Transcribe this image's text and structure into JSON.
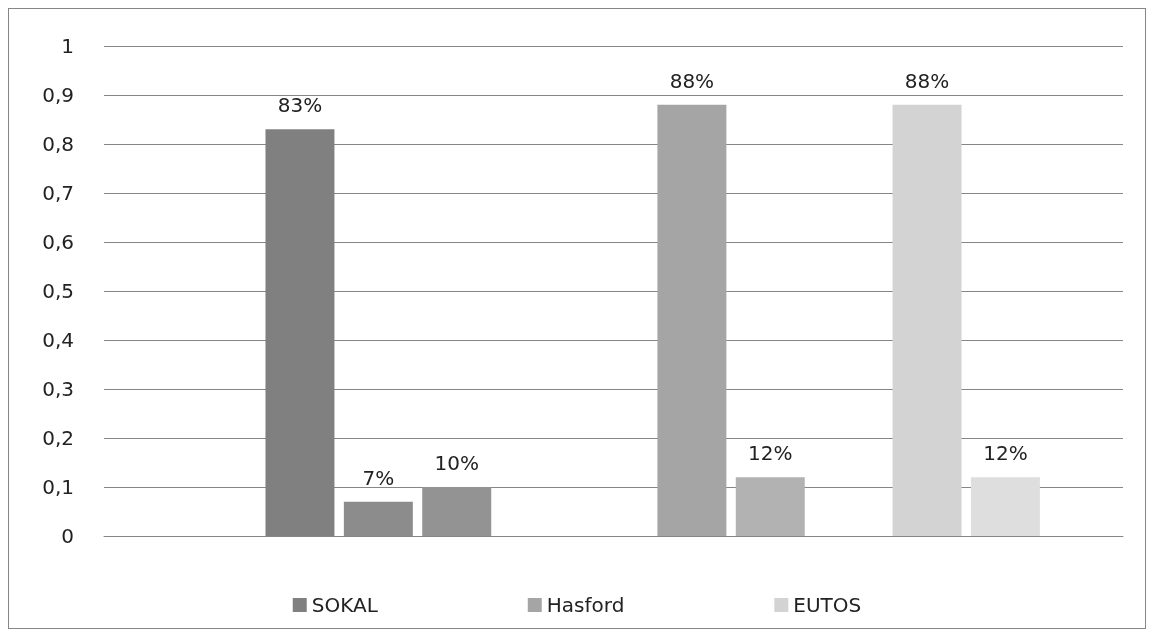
{
  "chart_data": {
    "type": "bar",
    "categories": [
      null,
      null,
      null,
      null,
      null,
      null,
      null,
      null,
      null,
      null,
      null,
      null,
      null
    ],
    "series": [
      {
        "name": "SOKAL",
        "color": "#808080",
        "colors": [
          null,
          null,
          "#808080",
          "#8c8c8c",
          "#939393",
          null,
          null,
          null,
          null,
          null,
          null,
          null,
          null
        ],
        "values": [
          null,
          null,
          0.83,
          0.07,
          0.1,
          null,
          null,
          null,
          null,
          null,
          null,
          null,
          null
        ],
        "value_labels": [
          null,
          null,
          "83%",
          "7%",
          "10%",
          null,
          null,
          null,
          null,
          null,
          null,
          null,
          null
        ]
      },
      {
        "name": "Hasford",
        "color": "#a5a5a5",
        "colors": [
          null,
          null,
          null,
          null,
          null,
          null,
          null,
          "#a5a5a5",
          "#b2b2b2",
          null,
          null,
          null,
          null
        ],
        "values": [
          null,
          null,
          null,
          null,
          null,
          null,
          null,
          0.88,
          0.12,
          null,
          null,
          null,
          null
        ],
        "value_labels": [
          null,
          null,
          null,
          null,
          null,
          null,
          null,
          "88%",
          "12%",
          null,
          null,
          null,
          null
        ]
      },
      {
        "name": "EUTOS",
        "color": "#d3d3d3",
        "colors": [
          null,
          null,
          null,
          null,
          null,
          null,
          null,
          null,
          null,
          null,
          "#d3d3d3",
          "#dedede",
          null
        ],
        "values": [
          null,
          null,
          null,
          null,
          null,
          null,
          null,
          null,
          null,
          null,
          0.88,
          0.12,
          null
        ],
        "value_labels": [
          null,
          null,
          null,
          null,
          null,
          null,
          null,
          null,
          null,
          null,
          "88%",
          "12%",
          null
        ]
      }
    ],
    "ylim": [
      0,
      1
    ],
    "yticks": [
      0,
      {
        "value": 0.1,
        "label": "0,1"
      },
      {
        "value": 0.2,
        "label": "0,2"
      },
      {
        "value": 0.3,
        "label": "0,3"
      },
      {
        "value": 0.4,
        "label": "0,4"
      },
      {
        "value": 0.5,
        "label": "0,5"
      },
      {
        "value": 0.6,
        "label": "0,6"
      },
      {
        "value": 0.7,
        "label": "0,7"
      },
      {
        "value": 0.8,
        "label": "0,8"
      },
      {
        "value": 0.9,
        "label": "0,9"
      },
      1
    ],
    "grid": "y",
    "legend": "bottom"
  }
}
